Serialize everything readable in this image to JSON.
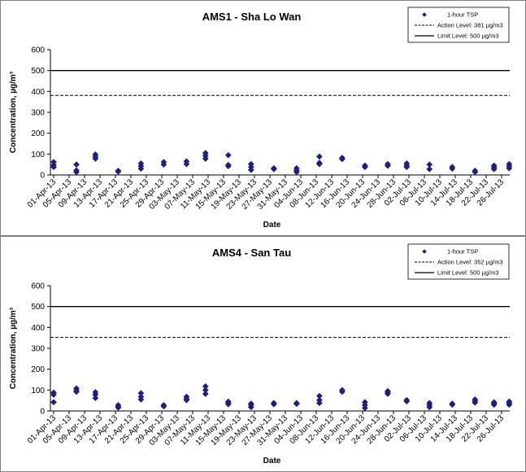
{
  "chart_data": [
    {
      "type": "scatter",
      "title": "AMS1 - Sha Lo Wan",
      "xlabel": "Date",
      "ylabel": "Concentration, µg/m³",
      "ylim": [
        0,
        600
      ],
      "yticks": [
        0,
        100,
        200,
        300,
        400,
        500,
        600
      ],
      "x_tick_labels": [
        "01-Apr-13",
        "05-Apr-13",
        "09-Apr-13",
        "13-Apr-13",
        "17-Apr-13",
        "21-Apr-13",
        "25-Apr-13",
        "29-Apr-13",
        "03-May-13",
        "07-May-13",
        "11-May-13",
        "15-May-13",
        "19-May-13",
        "23-May-13",
        "27-May-13",
        "31-May-13",
        "04-Jun-13",
        "08-Jun-13",
        "12-Jun-13",
        "16-Jun-13",
        "20-Jun-13",
        "24-Jun-13",
        "28-Jun-13",
        "02-Jul-13",
        "06-Jul-13",
        "10-Jul-13",
        "14-Jul-13",
        "18-Jul-13",
        "22-Jul-13",
        "26-Jul-13"
      ],
      "x_day_range": [
        0,
        118
      ],
      "grid": false,
      "legend_position": "top-right",
      "legend": {
        "series_label": "1-hour TSP",
        "action_label": "Action Level: 381 µg/m3",
        "limit_label": "Limit Level: 500 µg/m3"
      },
      "action_level": 381,
      "limit_level": 500,
      "series": [
        {
          "name": "1-hour TSP",
          "color": "#1f1f7a",
          "points": [
            [
              0,
              62
            ],
            [
              0,
              48
            ],
            [
              0,
              38
            ],
            [
              6,
              50
            ],
            [
              6,
              22
            ],
            [
              6,
              14
            ],
            [
              11,
              98
            ],
            [
              11,
              88
            ],
            [
              11,
              78
            ],
            [
              17,
              20
            ],
            [
              17,
              16
            ],
            [
              23,
              55
            ],
            [
              23,
              42
            ],
            [
              23,
              30
            ],
            [
              29,
              62
            ],
            [
              29,
              50
            ],
            [
              35,
              65
            ],
            [
              35,
              52
            ],
            [
              40,
              105
            ],
            [
              40,
              92
            ],
            [
              40,
              78
            ],
            [
              46,
              95
            ],
            [
              46,
              48
            ],
            [
              46,
              42
            ],
            [
              52,
              52
            ],
            [
              52,
              38
            ],
            [
              52,
              24
            ],
            [
              58,
              32
            ],
            [
              58,
              28
            ],
            [
              64,
              32
            ],
            [
              64,
              22
            ],
            [
              64,
              14
            ],
            [
              70,
              88
            ],
            [
              70,
              58
            ],
            [
              70,
              52
            ],
            [
              76,
              82
            ],
            [
              76,
              76
            ],
            [
              82,
              45
            ],
            [
              82,
              38
            ],
            [
              88,
              52
            ],
            [
              88,
              44
            ],
            [
              93,
              55
            ],
            [
              93,
              45
            ],
            [
              93,
              38
            ],
            [
              99,
              50
            ],
            [
              99,
              28
            ],
            [
              105,
              38
            ],
            [
              105,
              30
            ],
            [
              111,
              20
            ],
            [
              111,
              14
            ],
            [
              116,
              45
            ],
            [
              116,
              36
            ],
            [
              116,
              28
            ],
            [
              120,
              52
            ],
            [
              120,
              42
            ],
            [
              120,
              32
            ]
          ]
        }
      ]
    },
    {
      "type": "scatter",
      "title": "AMS4 - San Tau",
      "xlabel": "Date",
      "ylabel": "Concentration, µg/m³",
      "ylim": [
        0,
        600
      ],
      "yticks": [
        0,
        100,
        200,
        300,
        400,
        500,
        600
      ],
      "x_tick_labels": [
        "01-Apr-13",
        "05-Apr-13",
        "09-Apr-13",
        "13-Apr-13",
        "17-Apr-13",
        "21-Apr-13",
        "25-Apr-13",
        "29-Apr-13",
        "03-May-13",
        "07-May-13",
        "11-May-13",
        "15-May-13",
        "19-May-13",
        "23-May-13",
        "27-May-13",
        "31-May-13",
        "04-Jun-13",
        "08-Jun-13",
        "12-Jun-13",
        "16-Jun-13",
        "20-Jun-13",
        "24-Jun-13",
        "28-Jun-13",
        "02-Jul-13",
        "06-Jul-13",
        "10-Jul-13",
        "14-Jul-13",
        "18-Jul-13",
        "22-Jul-13",
        "26-Jul-13"
      ],
      "x_day_range": [
        0,
        118
      ],
      "grid": false,
      "legend_position": "top-right",
      "legend": {
        "series_label": "1-hour TSP",
        "action_label": "Action Level: 352 µg/m3",
        "limit_label": "Limit Level: 500 µg/m3"
      },
      "action_level": 352,
      "limit_level": 500,
      "series": [
        {
          "name": "1-hour TSP",
          "color": "#1f1f7a",
          "points": [
            [
              0,
              88
            ],
            [
              0,
              78
            ],
            [
              0,
              42
            ],
            [
              6,
              108
            ],
            [
              6,
              98
            ],
            [
              6,
              92
            ],
            [
              11,
              90
            ],
            [
              11,
              78
            ],
            [
              11,
              62
            ],
            [
              17,
              28
            ],
            [
              17,
              20
            ],
            [
              17,
              16
            ],
            [
              23,
              85
            ],
            [
              23,
              68
            ],
            [
              23,
              55
            ],
            [
              29,
              28
            ],
            [
              29,
              22
            ],
            [
              35,
              68
            ],
            [
              35,
              58
            ],
            [
              35,
              52
            ],
            [
              40,
              118
            ],
            [
              40,
              100
            ],
            [
              40,
              82
            ],
            [
              46,
              45
            ],
            [
              46,
              38
            ],
            [
              46,
              32
            ],
            [
              52,
              35
            ],
            [
              52,
              28
            ],
            [
              52,
              18
            ],
            [
              58,
              38
            ],
            [
              58,
              32
            ],
            [
              64,
              38
            ],
            [
              64,
              34
            ],
            [
              70,
              72
            ],
            [
              70,
              52
            ],
            [
              70,
              38
            ],
            [
              76,
              100
            ],
            [
              76,
              92
            ],
            [
              82,
              42
            ],
            [
              82,
              28
            ],
            [
              82,
              14
            ],
            [
              88,
              95
            ],
            [
              88,
              88
            ],
            [
              88,
              82
            ],
            [
              93,
              52
            ],
            [
              93,
              46
            ],
            [
              99,
              38
            ],
            [
              99,
              28
            ],
            [
              99,
              18
            ],
            [
              105,
              35
            ],
            [
              105,
              30
            ],
            [
              111,
              55
            ],
            [
              111,
              48
            ],
            [
              111,
              40
            ],
            [
              116,
              42
            ],
            [
              116,
              36
            ],
            [
              116,
              30
            ],
            [
              120,
              45
            ],
            [
              120,
              38
            ],
            [
              120,
              30
            ]
          ]
        }
      ]
    }
  ]
}
